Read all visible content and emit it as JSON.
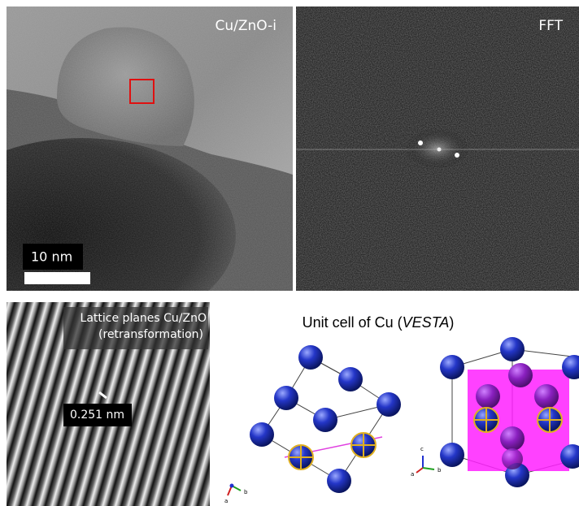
{
  "panels": {
    "tem": {
      "label": "Cu/ZnO-i",
      "scale_bar": "10 nm"
    },
    "fft": {
      "label": "FFT"
    },
    "lattice": {
      "label_lines": [
        "Lattice planes Cu/ZnO",
        "(retransformation)"
      ],
      "spacing": "0.251 nm"
    },
    "unit_cell": {
      "title_prefix": "Unit cell of Cu (",
      "title_italic": "VESTA",
      "title_suffix": ")",
      "axes_left": [
        "a",
        "b"
      ],
      "axes_right": [
        "c",
        "a",
        "b"
      ]
    }
  }
}
